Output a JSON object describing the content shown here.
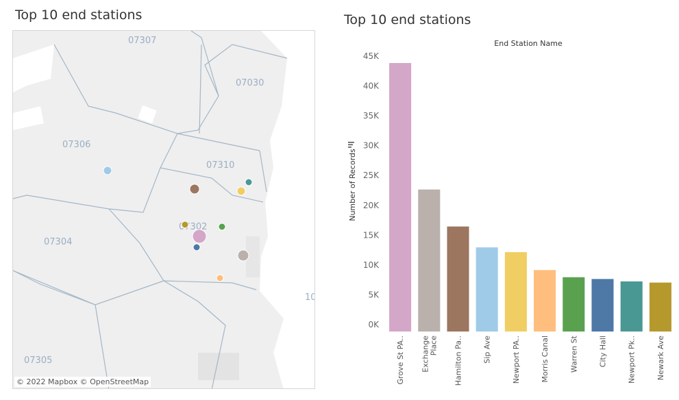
{
  "left_panel": {
    "title": "Top 10 end stations",
    "attribution": "© 2022 Mapbox  © OpenStreetMap",
    "zip_labels": [
      "07307",
      "07030",
      "07306",
      "07310",
      "07302",
      "07304",
      "07305",
      "10"
    ],
    "stations": [
      {
        "name": "Grove St PATH",
        "color": "#d4a6c8",
        "records": 45000
      },
      {
        "name": "Exchange Place",
        "color": "#bab0ac",
        "records": 23800
      },
      {
        "name": "Hamilton Park",
        "color": "#9d7660",
        "records": 17600
      },
      {
        "name": "Sip Ave",
        "color": "#a0cbe8",
        "records": 14100
      },
      {
        "name": "Newport PATH",
        "color": "#f1ce63",
        "records": 13300
      },
      {
        "name": "Morris Canal",
        "color": "#ffbe7d",
        "records": 10300
      },
      {
        "name": "Warren St",
        "color": "#59a14f",
        "records": 9100
      },
      {
        "name": "City Hall",
        "color": "#4e79a7",
        "records": 8800
      },
      {
        "name": "Newport Pkwy",
        "color": "#499894",
        "records": 8400
      },
      {
        "name": "Newark Ave",
        "color": "#b6992d",
        "records": 8200
      }
    ]
  },
  "right_panel": {
    "title": "Top 10 end stations"
  },
  "chart_data": {
    "type": "bar",
    "title": "Top 10 end stations",
    "column_header": "End Station Name",
    "xlabel": "",
    "ylabel": "Number of Records",
    "ylim": [
      0,
      45000
    ],
    "yticks": [
      {
        "value": 0,
        "label": "0K"
      },
      {
        "value": 5000,
        "label": "5K"
      },
      {
        "value": 10000,
        "label": "10K"
      },
      {
        "value": 15000,
        "label": "15K"
      },
      {
        "value": 20000,
        "label": "20K"
      },
      {
        "value": 25000,
        "label": "25K"
      },
      {
        "value": 30000,
        "label": "30K"
      },
      {
        "value": 35000,
        "label": "35K"
      },
      {
        "value": 40000,
        "label": "40K"
      },
      {
        "value": 45000,
        "label": "45K"
      }
    ],
    "categories": [
      [
        "Grove St PA.."
      ],
      [
        "Exchange",
        "Place"
      ],
      [
        "Hamilton Pa.."
      ],
      [
        "Sip Ave"
      ],
      [
        "Newport PA.."
      ],
      [
        "Morris Canal"
      ],
      [
        "Warren St"
      ],
      [
        "City Hall"
      ],
      [
        "Newport Pk.."
      ],
      [
        "Newark Ave"
      ]
    ],
    "values": [
      45000,
      23800,
      17600,
      14100,
      13300,
      10300,
      9100,
      8800,
      8400,
      8200
    ],
    "colors": [
      "#d4a6c8",
      "#bab0ac",
      "#9d7660",
      "#a0cbe8",
      "#f1ce63",
      "#ffbe7d",
      "#59a14f",
      "#4e79a7",
      "#499894",
      "#b6992d"
    ],
    "grid": false,
    "legend": "none"
  }
}
